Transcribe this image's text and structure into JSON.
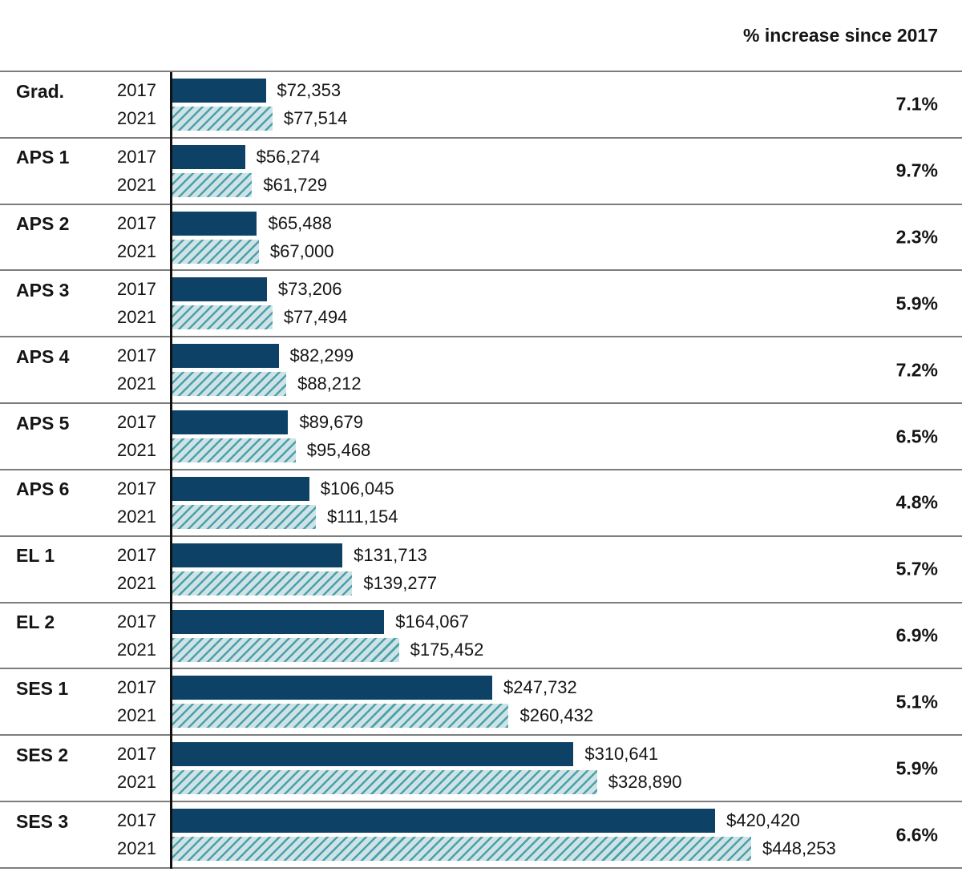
{
  "chart_data": {
    "type": "bar",
    "orientation": "horizontal",
    "title": "",
    "pct_column_header": "% increase since 2017",
    "categories": [
      "Grad.",
      "APS 1",
      "APS 2",
      "APS 3",
      "APS 4",
      "APS 5",
      "APS 6",
      "EL 1",
      "EL 2",
      "SES 1",
      "SES 2",
      "SES 3"
    ],
    "series": [
      {
        "name": "2017",
        "style": "solid",
        "color": "#0e4166",
        "values": [
          72353,
          56274,
          65488,
          73206,
          82299,
          89679,
          106045,
          131713,
          164067,
          247732,
          310641,
          420420
        ],
        "labels": [
          "$72,353",
          "$56,274",
          "$65,488",
          "$73,206",
          "$82,299",
          "$89,679",
          "$106,045",
          "$131,713",
          "$164,067",
          "$247,732",
          "$310,641",
          "$420,420"
        ]
      },
      {
        "name": "2021",
        "style": "hatched",
        "color_bg": "#cfe3e6",
        "color_stripe": "#4aa1ab",
        "values": [
          77514,
          61729,
          67000,
          77494,
          88212,
          95468,
          111154,
          139277,
          175452,
          260432,
          328890,
          448253
        ],
        "labels": [
          "$77,514",
          "$61,729",
          "$67,000",
          "$77,494",
          "$88,212",
          "$95,468",
          "$111,154",
          "$139,277",
          "$175,452",
          "$260,432",
          "$328,890",
          "$448,253"
        ]
      }
    ],
    "pct_increase": [
      "7.1%",
      "9.7%",
      "2.3%",
      "5.9%",
      "7.2%",
      "6.5%",
      "4.8%",
      "5.7%",
      "6.9%",
      "5.1%",
      "5.9%",
      "6.6%"
    ],
    "xlim": [
      0,
      448253
    ],
    "grid": "horizontal-row-separators",
    "legend_position": "none",
    "axis_line_color": "#111111",
    "separator_color": "#7d7d7d"
  }
}
